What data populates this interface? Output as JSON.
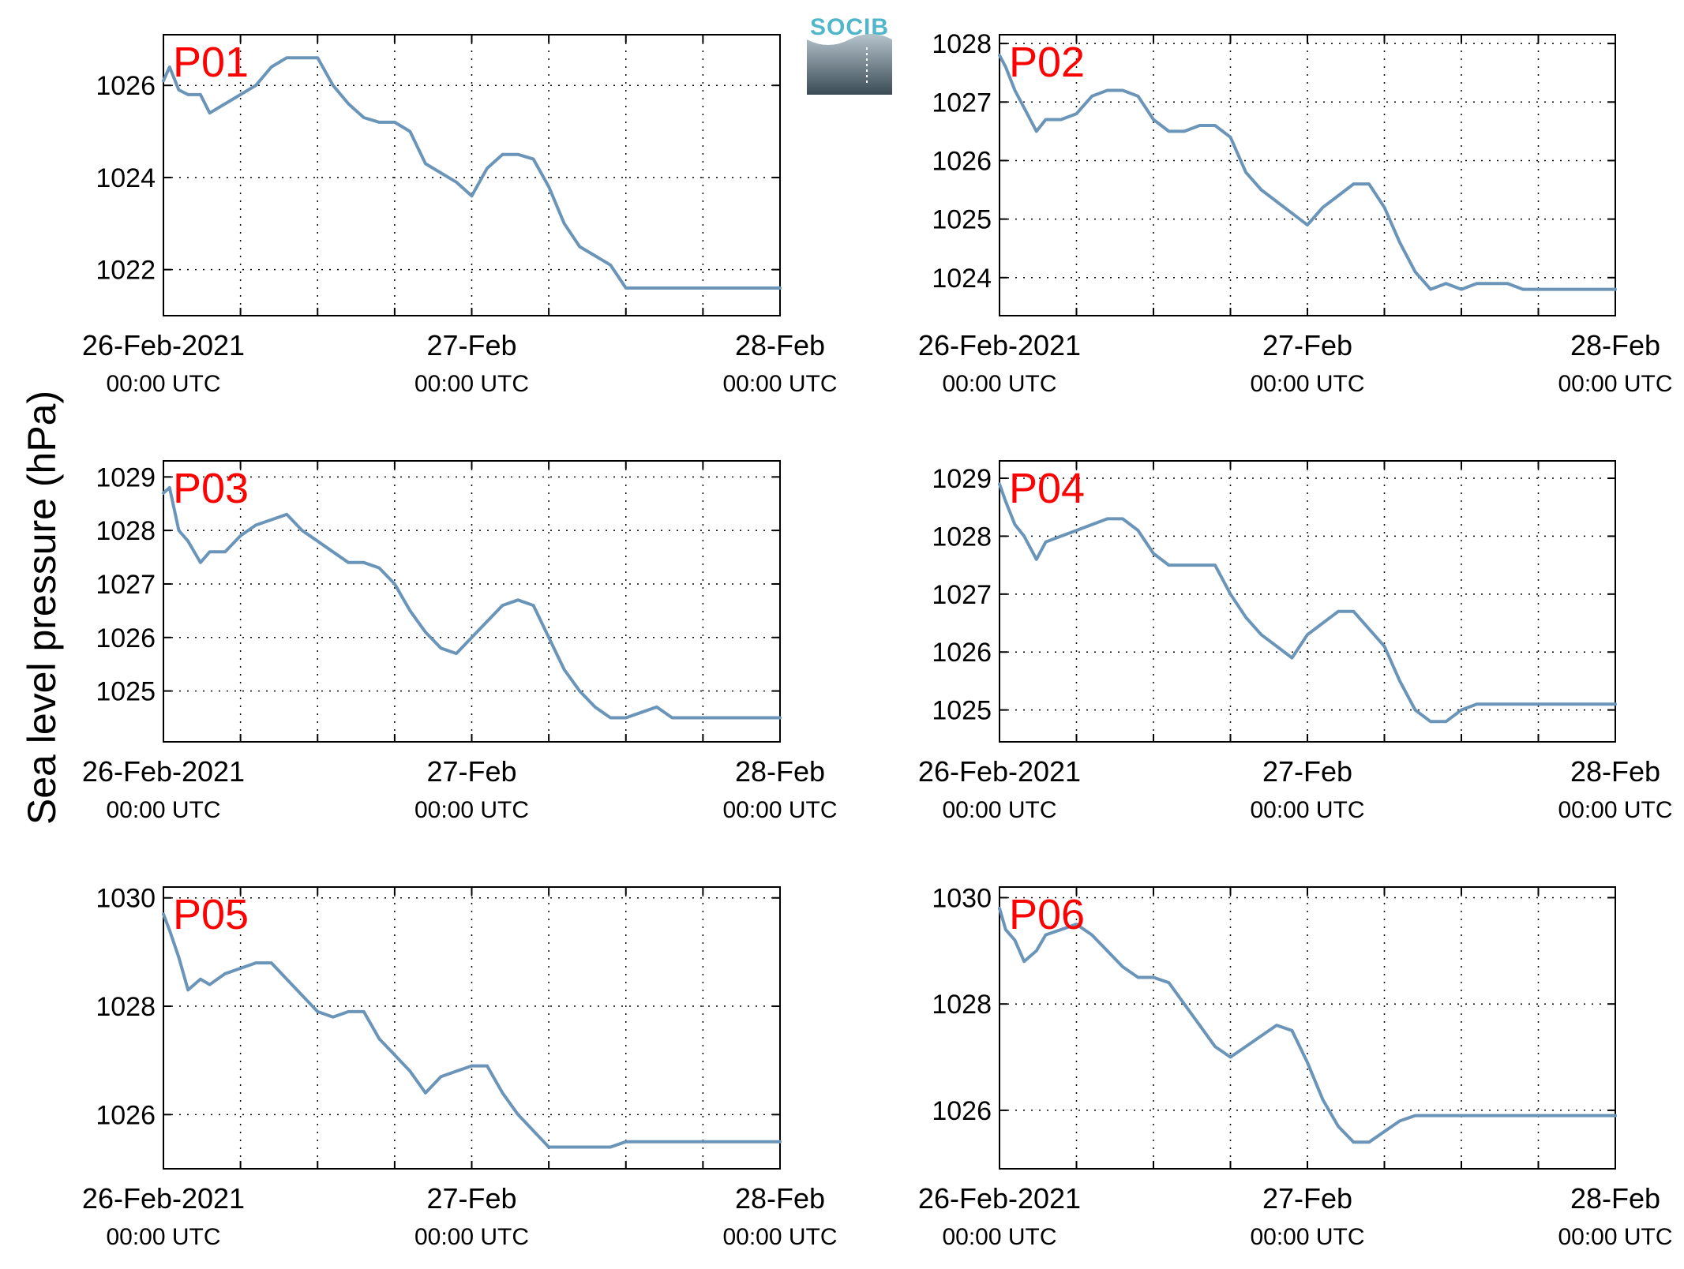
{
  "figure": {
    "ylabel": "Sea level pressure (hPa)",
    "logo_text": "SOCIB",
    "colors": {
      "line": "#6b95b8",
      "panel_label": "#ff0000",
      "axis": "#000000",
      "grid": "#000000"
    }
  },
  "chart_data": [
    {
      "type": "line",
      "panel_label": "P01",
      "series": [
        {
          "x": [
            0,
            0.02,
            0.05,
            0.08,
            0.12,
            0.15,
            0.2,
            0.25,
            0.3,
            0.35,
            0.4,
            0.45,
            0.5,
            0.55,
            0.6,
            0.65,
            0.7,
            0.75,
            0.8,
            0.85,
            0.9,
            0.95,
            1.0,
            1.05,
            1.1,
            1.15,
            1.2,
            1.25,
            1.3,
            1.35,
            1.4,
            1.45,
            1.5,
            1.55,
            1.6,
            1.65,
            1.7,
            1.75,
            1.8,
            1.85,
            1.9,
            1.95,
            2.0
          ],
          "y": [
            1026.1,
            1026.4,
            1025.9,
            1025.8,
            1025.8,
            1025.4,
            1025.6,
            1025.8,
            1026.0,
            1026.4,
            1026.6,
            1026.6,
            1026.6,
            1026.0,
            1025.6,
            1025.3,
            1025.2,
            1025.2,
            1025.0,
            1024.3,
            1024.1,
            1023.9,
            1023.6,
            1024.2,
            1024.5,
            1024.5,
            1024.4,
            1023.8,
            1023.0,
            1022.5,
            1022.3,
            1022.1,
            1021.6,
            1021.6,
            1021.6,
            1021.6,
            1021.6,
            1021.6,
            1021.6,
            1021.6,
            1021.6,
            1021.6,
            1021.6
          ]
        }
      ],
      "xticks": [
        0,
        1,
        2
      ],
      "xticklabels_top": [
        "26-Feb-2021",
        "27-Feb",
        "28-Feb"
      ],
      "xticklabels_bottom": [
        "00:00 UTC",
        "00:00 UTC",
        "00:00 UTC"
      ],
      "yticks": [
        1022,
        1024,
        1026
      ],
      "ylim": [
        1021,
        1027.1
      ],
      "xlim": [
        0,
        2
      ],
      "grid": true
    },
    {
      "type": "line",
      "panel_label": "P02",
      "series": [
        {
          "x": [
            0,
            0.02,
            0.05,
            0.08,
            0.12,
            0.15,
            0.2,
            0.25,
            0.3,
            0.35,
            0.4,
            0.45,
            0.5,
            0.55,
            0.6,
            0.65,
            0.7,
            0.75,
            0.8,
            0.85,
            0.9,
            0.95,
            1.0,
            1.05,
            1.1,
            1.15,
            1.2,
            1.25,
            1.3,
            1.35,
            1.4,
            1.45,
            1.5,
            1.55,
            1.6,
            1.65,
            1.7,
            1.75,
            1.8,
            1.85,
            1.9,
            1.95,
            2.0
          ],
          "y": [
            1027.8,
            1027.6,
            1027.2,
            1026.9,
            1026.5,
            1026.7,
            1026.7,
            1026.8,
            1027.1,
            1027.2,
            1027.2,
            1027.1,
            1026.7,
            1026.5,
            1026.5,
            1026.6,
            1026.6,
            1026.4,
            1025.8,
            1025.5,
            1025.3,
            1025.1,
            1024.9,
            1025.2,
            1025.4,
            1025.6,
            1025.6,
            1025.2,
            1024.6,
            1024.1,
            1023.8,
            1023.9,
            1023.8,
            1023.9,
            1023.9,
            1023.9,
            1023.8,
            1023.8,
            1023.8,
            1023.8,
            1023.8,
            1023.8,
            1023.8
          ]
        }
      ],
      "xticks": [
        0,
        1,
        2
      ],
      "xticklabels_top": [
        "26-Feb-2021",
        "27-Feb",
        "28-Feb"
      ],
      "xticklabels_bottom": [
        "00:00 UTC",
        "00:00 UTC",
        "00:00 UTC"
      ],
      "yticks": [
        1024,
        1025,
        1026,
        1027,
        1028
      ],
      "ylim": [
        1023.35,
        1028.15
      ],
      "xlim": [
        0,
        2
      ],
      "grid": true
    },
    {
      "type": "line",
      "panel_label": "P03",
      "series": [
        {
          "x": [
            0,
            0.02,
            0.05,
            0.08,
            0.12,
            0.15,
            0.2,
            0.25,
            0.3,
            0.35,
            0.4,
            0.45,
            0.5,
            0.55,
            0.6,
            0.65,
            0.7,
            0.75,
            0.8,
            0.85,
            0.9,
            0.95,
            1.0,
            1.05,
            1.1,
            1.15,
            1.2,
            1.25,
            1.3,
            1.35,
            1.4,
            1.45,
            1.5,
            1.55,
            1.6,
            1.65,
            1.7,
            1.75,
            1.8,
            1.85,
            1.9,
            1.95,
            2.0
          ],
          "y": [
            1028.7,
            1028.8,
            1028.0,
            1027.8,
            1027.4,
            1027.6,
            1027.6,
            1027.9,
            1028.1,
            1028.2,
            1028.3,
            1028.0,
            1027.8,
            1027.6,
            1027.4,
            1027.4,
            1027.3,
            1027.0,
            1026.5,
            1026.1,
            1025.8,
            1025.7,
            1026.0,
            1026.3,
            1026.6,
            1026.7,
            1026.6,
            1026.0,
            1025.4,
            1025.0,
            1024.7,
            1024.5,
            1024.5,
            1024.6,
            1024.7,
            1024.5,
            1024.5,
            1024.5,
            1024.5,
            1024.5,
            1024.5,
            1024.5,
            1024.5
          ]
        }
      ],
      "xticks": [
        0,
        1,
        2
      ],
      "xticklabels_top": [
        "26-Feb-2021",
        "27-Feb",
        "28-Feb"
      ],
      "xticklabels_bottom": [
        "00:00 UTC",
        "00:00 UTC",
        "00:00 UTC"
      ],
      "yticks": [
        1025,
        1026,
        1027,
        1028,
        1029
      ],
      "ylim": [
        1024.05,
        1029.3
      ],
      "xlim": [
        0,
        2
      ],
      "grid": true
    },
    {
      "type": "line",
      "panel_label": "P04",
      "series": [
        {
          "x": [
            0,
            0.02,
            0.05,
            0.08,
            0.12,
            0.15,
            0.2,
            0.25,
            0.3,
            0.35,
            0.4,
            0.45,
            0.5,
            0.55,
            0.6,
            0.65,
            0.7,
            0.75,
            0.8,
            0.85,
            0.9,
            0.95,
            1.0,
            1.05,
            1.1,
            1.15,
            1.2,
            1.25,
            1.3,
            1.35,
            1.4,
            1.45,
            1.5,
            1.55,
            1.6,
            1.65,
            1.7,
            1.75,
            1.8,
            1.85,
            1.9,
            1.95,
            2.0
          ],
          "y": [
            1028.9,
            1028.6,
            1028.2,
            1028.0,
            1027.6,
            1027.9,
            1028.0,
            1028.1,
            1028.2,
            1028.3,
            1028.3,
            1028.1,
            1027.7,
            1027.5,
            1027.5,
            1027.5,
            1027.5,
            1027.0,
            1026.6,
            1026.3,
            1026.1,
            1025.9,
            1026.3,
            1026.5,
            1026.7,
            1026.7,
            1026.4,
            1026.1,
            1025.5,
            1025.0,
            1024.8,
            1024.8,
            1025.0,
            1025.1,
            1025.1,
            1025.1,
            1025.1,
            1025.1,
            1025.1,
            1025.1,
            1025.1,
            1025.1,
            1025.1
          ]
        }
      ],
      "xticks": [
        0,
        1,
        2
      ],
      "xticklabels_top": [
        "26-Feb-2021",
        "27-Feb",
        "28-Feb"
      ],
      "xticklabels_bottom": [
        "00:00 UTC",
        "00:00 UTC",
        "00:00 UTC"
      ],
      "yticks": [
        1025,
        1026,
        1027,
        1028,
        1029
      ],
      "ylim": [
        1024.45,
        1029.3
      ],
      "xlim": [
        0,
        2
      ],
      "grid": true
    },
    {
      "type": "line",
      "panel_label": "P05",
      "series": [
        {
          "x": [
            0,
            0.02,
            0.05,
            0.08,
            0.12,
            0.15,
            0.2,
            0.25,
            0.3,
            0.35,
            0.4,
            0.45,
            0.5,
            0.55,
            0.6,
            0.65,
            0.7,
            0.75,
            0.8,
            0.85,
            0.9,
            0.95,
            1.0,
            1.05,
            1.1,
            1.15,
            1.2,
            1.25,
            1.3,
            1.35,
            1.4,
            1.45,
            1.5,
            1.55,
            1.6,
            1.65,
            1.7,
            1.75,
            1.8,
            1.85,
            1.9,
            1.95,
            2.0
          ],
          "y": [
            1029.7,
            1029.4,
            1028.9,
            1028.3,
            1028.5,
            1028.4,
            1028.6,
            1028.7,
            1028.8,
            1028.8,
            1028.5,
            1028.2,
            1027.9,
            1027.8,
            1027.9,
            1027.9,
            1027.4,
            1027.1,
            1026.8,
            1026.4,
            1026.7,
            1026.8,
            1026.9,
            1026.9,
            1026.4,
            1026.0,
            1025.7,
            1025.4,
            1025.4,
            1025.4,
            1025.4,
            1025.4,
            1025.5,
            1025.5,
            1025.5,
            1025.5,
            1025.5,
            1025.5,
            1025.5,
            1025.5,
            1025.5,
            1025.5,
            1025.5
          ]
        }
      ],
      "xticks": [
        0,
        1,
        2
      ],
      "xticklabels_top": [
        "26-Feb-2021",
        "27-Feb",
        "28-Feb"
      ],
      "xticklabels_bottom": [
        "00:00 UTC",
        "00:00 UTC",
        "00:00 UTC"
      ],
      "yticks": [
        1026,
        1028,
        1030
      ],
      "ylim": [
        1025.0,
        1030.2
      ],
      "xlim": [
        0,
        2
      ],
      "grid": true
    },
    {
      "type": "line",
      "panel_label": "P06",
      "series": [
        {
          "x": [
            0,
            0.02,
            0.05,
            0.08,
            0.12,
            0.15,
            0.2,
            0.25,
            0.3,
            0.35,
            0.4,
            0.45,
            0.5,
            0.55,
            0.6,
            0.65,
            0.7,
            0.75,
            0.8,
            0.85,
            0.9,
            0.95,
            1.0,
            1.05,
            1.1,
            1.15,
            1.2,
            1.25,
            1.3,
            1.35,
            1.4,
            1.45,
            1.5,
            1.55,
            1.6,
            1.65,
            1.7,
            1.75,
            1.8,
            1.85,
            1.9,
            1.95,
            2.0
          ],
          "y": [
            1029.8,
            1029.4,
            1029.2,
            1028.8,
            1029.0,
            1029.3,
            1029.4,
            1029.5,
            1029.3,
            1029.0,
            1028.7,
            1028.5,
            1028.5,
            1028.4,
            1028.0,
            1027.6,
            1027.2,
            1027.0,
            1027.2,
            1027.4,
            1027.6,
            1027.5,
            1026.9,
            1026.2,
            1025.7,
            1025.4,
            1025.4,
            1025.6,
            1025.8,
            1025.9,
            1025.9,
            1025.9,
            1025.9,
            1025.9,
            1025.9,
            1025.9,
            1025.9,
            1025.9,
            1025.9,
            1025.9,
            1025.9,
            1025.9,
            1025.9
          ]
        }
      ],
      "xticks": [
        0,
        1,
        2
      ],
      "xticklabels_top": [
        "26-Feb-2021",
        "27-Feb",
        "28-Feb"
      ],
      "xticklabels_bottom": [
        "00:00 UTC",
        "00:00 UTC",
        "00:00 UTC"
      ],
      "yticks": [
        1026,
        1028,
        1030
      ],
      "ylim": [
        1024.9,
        1030.2
      ],
      "xlim": [
        0,
        2
      ],
      "grid": true
    }
  ]
}
